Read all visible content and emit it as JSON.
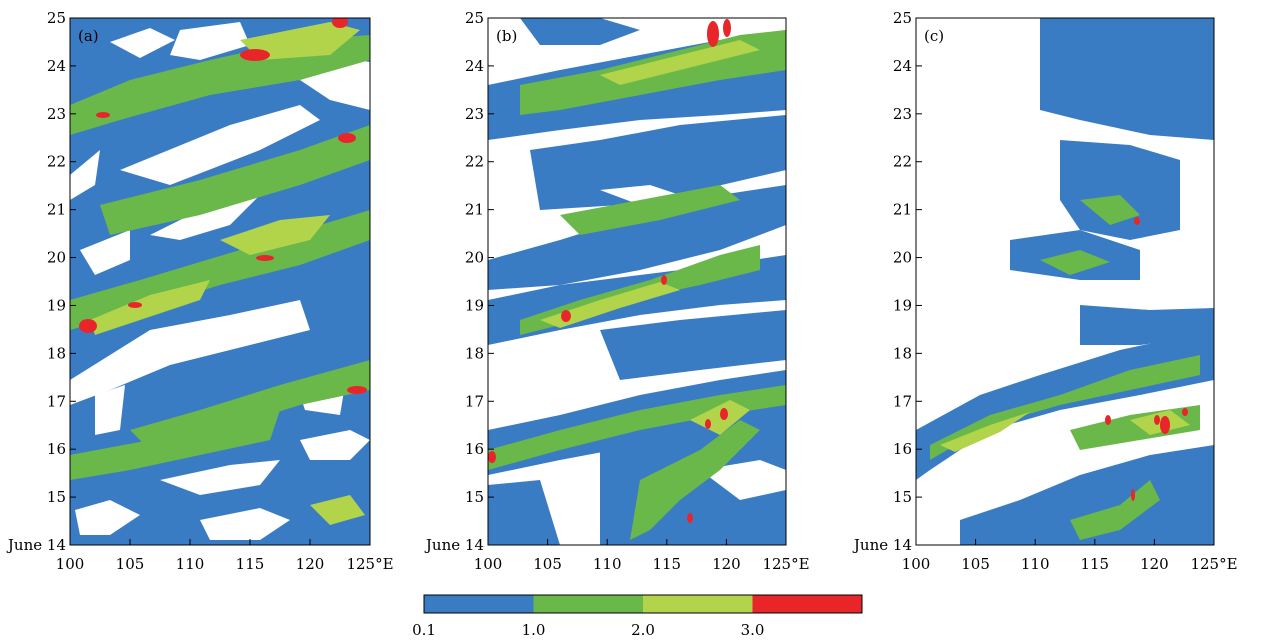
{
  "chart_data": [
    {
      "type": "heatmap",
      "panel_label": "(a)",
      "x_ticks": [
        "100",
        "105",
        "110",
        "115",
        "120",
        "125°E"
      ],
      "y_ticks": [
        "June 14",
        "15",
        "16",
        "17",
        "18",
        "19",
        "20",
        "21",
        "22",
        "23",
        "24",
        "25"
      ],
      "xlim": [
        100,
        125
      ],
      "ylim": [
        14,
        25
      ]
    },
    {
      "type": "heatmap",
      "panel_label": "(b)",
      "x_ticks": [
        "100",
        "105",
        "110",
        "115",
        "120",
        "125°E"
      ],
      "y_ticks": [
        "June 14",
        "15",
        "16",
        "17",
        "18",
        "19",
        "20",
        "21",
        "22",
        "23",
        "24",
        "25"
      ],
      "xlim": [
        100,
        125
      ],
      "ylim": [
        14,
        25
      ]
    },
    {
      "type": "heatmap",
      "panel_label": "(c)",
      "x_ticks": [
        "100",
        "105",
        "110",
        "115",
        "120",
        "125°E"
      ],
      "y_ticks": [
        "June 14",
        "15",
        "16",
        "17",
        "18",
        "19",
        "20",
        "21",
        "22",
        "23",
        "24",
        "25"
      ],
      "xlim": [
        100,
        125
      ],
      "ylim": [
        14,
        25
      ]
    }
  ],
  "colorbar": {
    "colors": [
      "#3a7cc4",
      "#6ab84a",
      "#b2d44a",
      "#e8262a"
    ],
    "labels": [
      "0.1",
      "1.0",
      "2.0",
      "3.0"
    ]
  },
  "colors": {
    "level1": "#3a7cc4",
    "level2": "#6ab84a",
    "level3": "#b2d44a",
    "level4": "#e8262a"
  }
}
